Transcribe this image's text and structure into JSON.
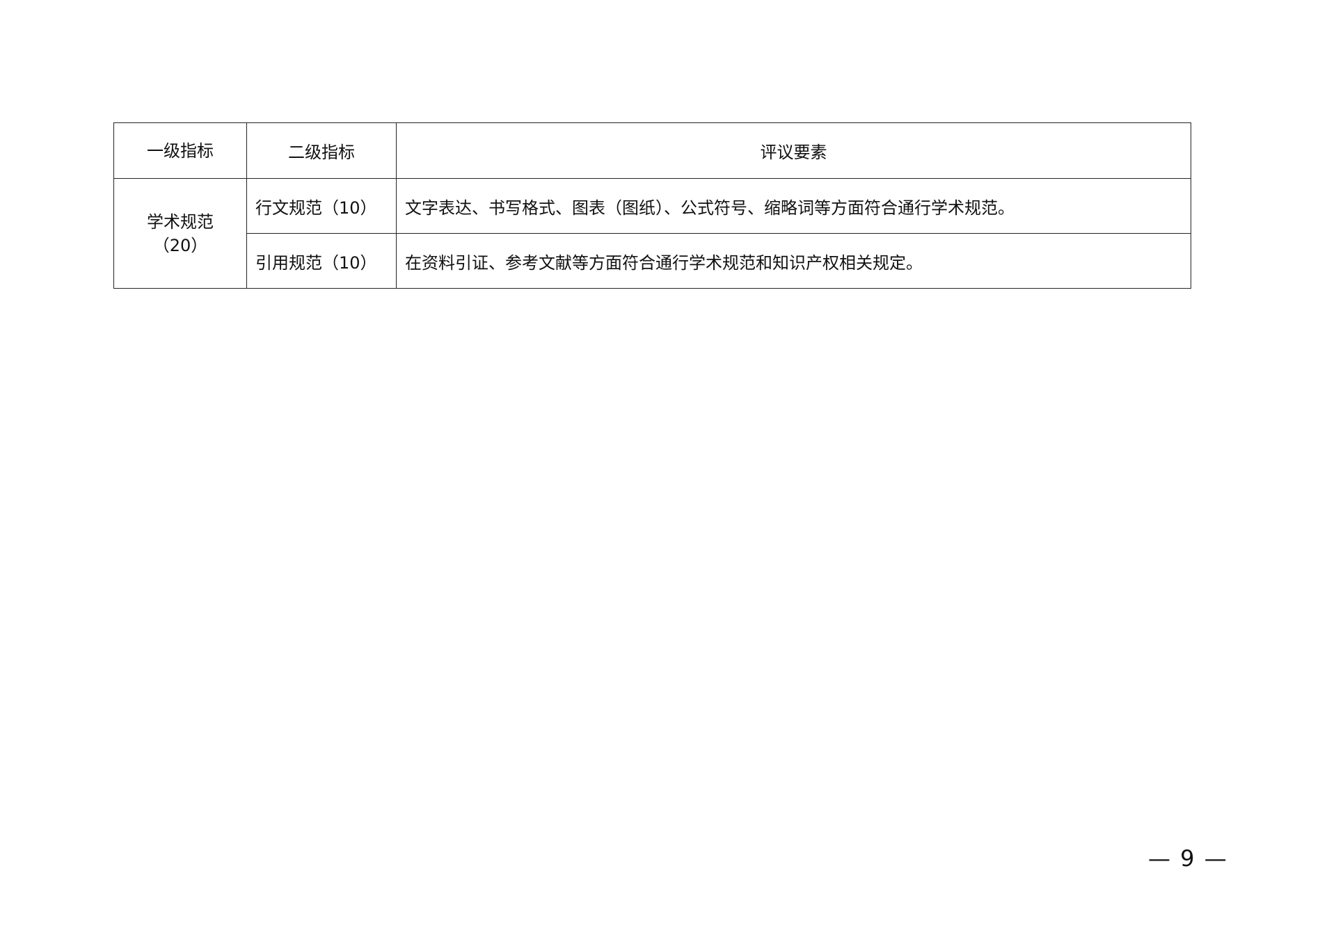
{
  "table": {
    "headers": [
      "一级指标",
      "二级指标",
      "评议要素"
    ],
    "group": {
      "label": "学术规范",
      "score": "（20）"
    },
    "rows": [
      {
        "secondary": "行文规范（10）",
        "criteria": "文字表达、书写格式、图表（图纸）、公式符号、缩略词等方面符合通行学术规范。"
      },
      {
        "secondary": "引用规范（10）",
        "criteria": "在资料引证、参考文献等方面符合通行学术规范和知识产权相关规定。"
      }
    ]
  },
  "page_number": "— 9 —"
}
